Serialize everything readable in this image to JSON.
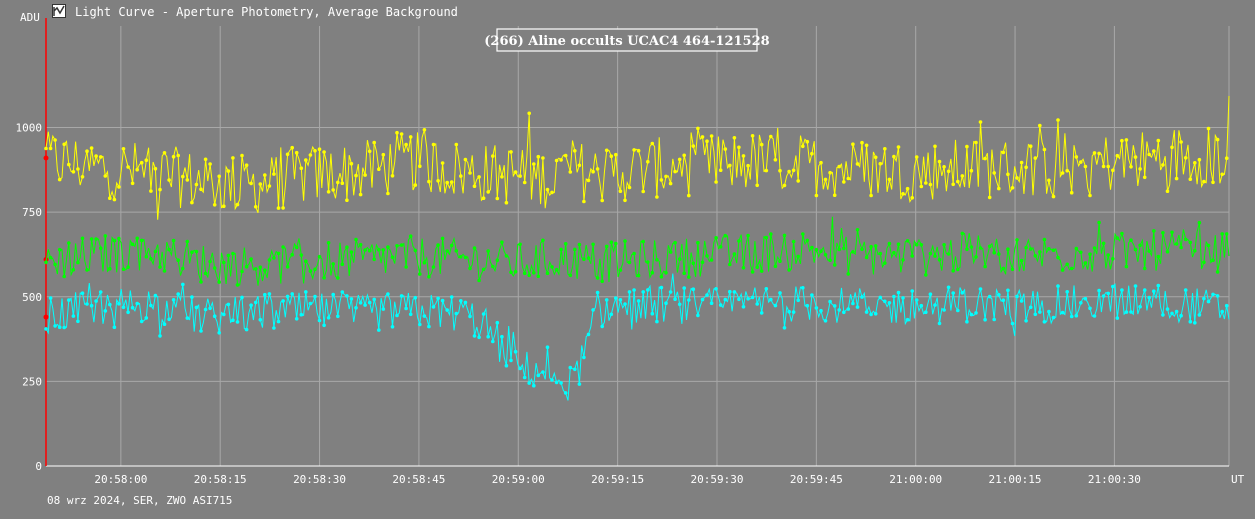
{
  "window": {
    "title": "Light Curve - Aperture Photometry, Average Background",
    "app_icon": "light-curve-app-icon"
  },
  "footer": {
    "text": "08 wrz 2024, SER, ZWO ASI715"
  },
  "colors": {
    "background": "#808080",
    "grid": "#a8a8a8",
    "series_target": "#00ffff",
    "series_comp1": "#00ff00",
    "series_comp2": "#ffff00",
    "cursor_line": "#ff0000"
  },
  "chart_data": {
    "type": "line",
    "title": "(266) Aline occults UCAC4 464-121528",
    "ylabel": "ADU",
    "xlabel": "UT",
    "ylim": [
      0,
      1300
    ],
    "y_ticks": [
      0,
      250,
      500,
      750,
      1000
    ],
    "x_ticks": [
      "20:58:00",
      "20:58:15",
      "20:58:30",
      "20:58:45",
      "20:59:00",
      "20:59:15",
      "20:59:30",
      "20:59:45",
      "21:00:00",
      "21:00:15",
      "21:00:30"
    ],
    "x_range": [
      "20:57:48.7",
      "21:00:47.3"
    ],
    "grid": true,
    "cursor_time": "20:57:48.7",
    "series": [
      {
        "color": "#ffff00",
        "marker": "circle",
        "times": [
          "20:57:48.7",
          "20:57:56",
          "20:58:04",
          "20:58:12",
          "20:58:20",
          "20:58:28",
          "20:58:36",
          "20:58:44",
          "20:58:52",
          "20:59:00",
          "20:59:04",
          "20:59:08",
          "20:59:12",
          "20:59:20",
          "20:59:28",
          "20:59:36",
          "20:59:44",
          "20:59:52",
          "21:00:00",
          "21:00:08",
          "21:00:16",
          "21:00:24",
          "21:00:32",
          "21:00:40",
          "21:00:47.3"
        ],
        "values": [
          910,
          880,
          870,
          840,
          830,
          860,
          870,
          900,
          870,
          860,
          850,
          880,
          860,
          880,
          890,
          900,
          890,
          880,
          870,
          880,
          880,
          890,
          900,
          920,
          910
        ]
      },
      {
        "color": "#00ff00",
        "marker": "circle",
        "times": [
          "20:57:48.7",
          "20:57:56",
          "20:58:04",
          "20:58:12",
          "20:58:20",
          "20:58:28",
          "20:58:36",
          "20:58:44",
          "20:58:52",
          "20:59:00",
          "20:59:04",
          "20:59:08",
          "20:59:12",
          "20:59:20",
          "20:59:28",
          "20:59:36",
          "20:59:44",
          "20:59:52",
          "21:00:00",
          "21:00:08",
          "21:00:16",
          "21:00:24",
          "21:00:32",
          "21:00:40",
          "21:00:47.3"
        ],
        "values": [
          610,
          620,
          640,
          600,
          590,
          600,
          610,
          620,
          610,
          600,
          610,
          610,
          600,
          610,
          620,
          630,
          640,
          620,
          620,
          630,
          620,
          630,
          630,
          640,
          630
        ]
      },
      {
        "color": "#00ffff",
        "marker": "circle",
        "times": [
          "20:57:48.7",
          "20:57:56",
          "20:58:04",
          "20:58:12",
          "20:58:20",
          "20:58:28",
          "20:58:36",
          "20:58:44",
          "20:58:52",
          "20:58:56",
          "20:58:58",
          "20:59:00",
          "20:59:04",
          "20:59:08",
          "20:59:10",
          "20:59:12",
          "20:59:20",
          "20:59:28",
          "20:59:36",
          "20:59:44",
          "20:59:52",
          "21:00:00",
          "21:00:08",
          "21:00:16",
          "21:00:24",
          "21:00:32",
          "21:00:40",
          "21:00:47.3"
        ],
        "values": [
          440,
          470,
          480,
          440,
          450,
          460,
          450,
          460,
          450,
          400,
          330,
          290,
          280,
          240,
          330,
          460,
          480,
          470,
          480,
          480,
          470,
          470,
          480,
          470,
          480,
          490,
          480,
          460
        ]
      }
    ]
  }
}
